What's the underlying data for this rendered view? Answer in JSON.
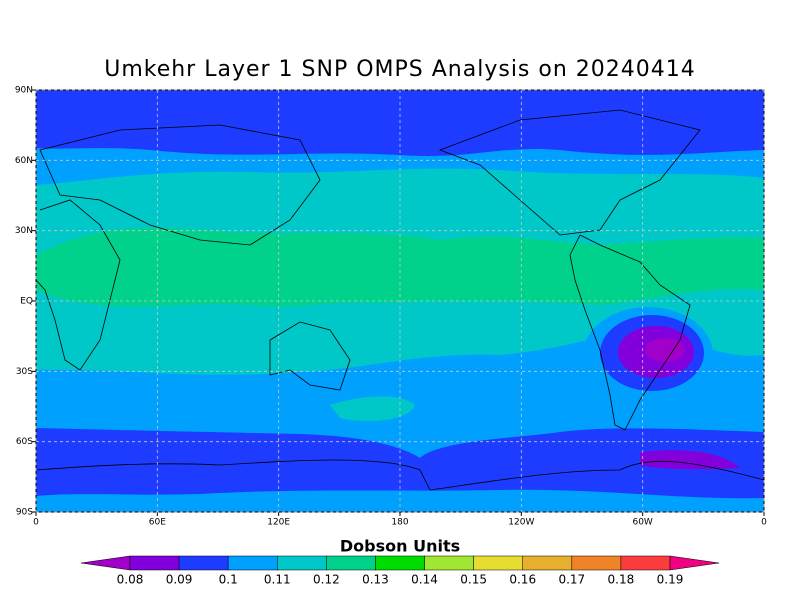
{
  "map": {
    "title": "Umkehr Layer 1 SNP OMPS Analysis on 20240414",
    "xlim": [
      0,
      360
    ],
    "ylim": [
      -90,
      90
    ],
    "xticks": [
      0,
      {
        "value": 60,
        "label": "60E"
      },
      {
        "value": 120,
        "label": "120E"
      },
      180,
      {
        "value": 240,
        "label": "120W"
      },
      {
        "value": 300,
        "label": "60W"
      },
      {
        "value": 360,
        "label": "0"
      }
    ],
    "yticks": [
      {
        "value": 90,
        "label": "90N"
      },
      {
        "value": 60,
        "label": "60N"
      },
      {
        "value": 30,
        "label": "30N"
      },
      {
        "value": 0,
        "label": "EQ"
      },
      {
        "value": -30,
        "label": "30S"
      },
      {
        "value": -60,
        "label": "60S"
      },
      {
        "value": -90,
        "label": "90S"
      }
    ],
    "grid": true,
    "colorbar": {
      "title": "Dobson Units",
      "levels": [
        0.08,
        0.09,
        0.1,
        0.11,
        0.12,
        0.13,
        0.14,
        0.15,
        0.16,
        0.17,
        0.18,
        0.19
      ],
      "colors": [
        "#a000c8",
        "#8200dc",
        "#1e3cff",
        "#00a0ff",
        "#00c8c8",
        "#00d28c",
        "#00dc00",
        "#a0e632",
        "#e6dc32",
        "#e6af2d",
        "#f08228",
        "#fa3c3c",
        "#f00082"
      ]
    }
  }
}
